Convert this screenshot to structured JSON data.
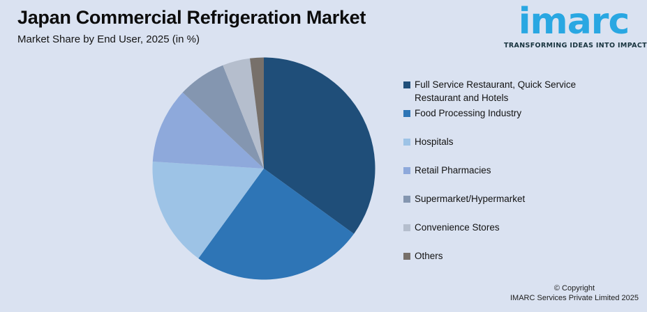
{
  "theme": {
    "background": "#DAE2F1",
    "title_color": "#0C0C0C"
  },
  "header": {
    "title": "Japan Commercial Refrigeration Market",
    "subtitle": "Market Share by End User, 2025 (in %)"
  },
  "logo": {
    "brand": "imarc",
    "tagline": "TRANSFORMING IDEAS INTO IMPACT",
    "brand_color": "#29A7E2",
    "tagline_color": "#17333E"
  },
  "chart_data": {
    "type": "pie",
    "title": "Japan Commercial Refrigeration Market",
    "subtitle": "Market Share by End User, 2025 (in %)",
    "unit": "%",
    "start_angle_deg": 0,
    "direction": "clockwise",
    "legend_position": "right",
    "data_labels_shown": false,
    "slices": [
      {
        "label": "Full Service Restaurant, Quick Service Restaurant and Hotels",
        "value": 35,
        "color": "#1F4E79"
      },
      {
        "label": "Food Processing Industry",
        "value": 25,
        "color": "#2E75B6"
      },
      {
        "label": "Hospitals",
        "value": 16,
        "color": "#9DC3E6"
      },
      {
        "label": "Retail Pharmacies",
        "value": 11,
        "color": "#8EA9DB"
      },
      {
        "label": "Supermarket/Hypermarket",
        "value": 7,
        "color": "#8496B0"
      },
      {
        "label": "Convenience Stores",
        "value": 4,
        "color": "#B5BECD"
      },
      {
        "label": "Others",
        "value": 2,
        "color": "#77706A"
      }
    ]
  },
  "footer": {
    "copyright_line1": "© Copyright",
    "copyright_line2": "IMARC Services Private Limited 2025"
  }
}
